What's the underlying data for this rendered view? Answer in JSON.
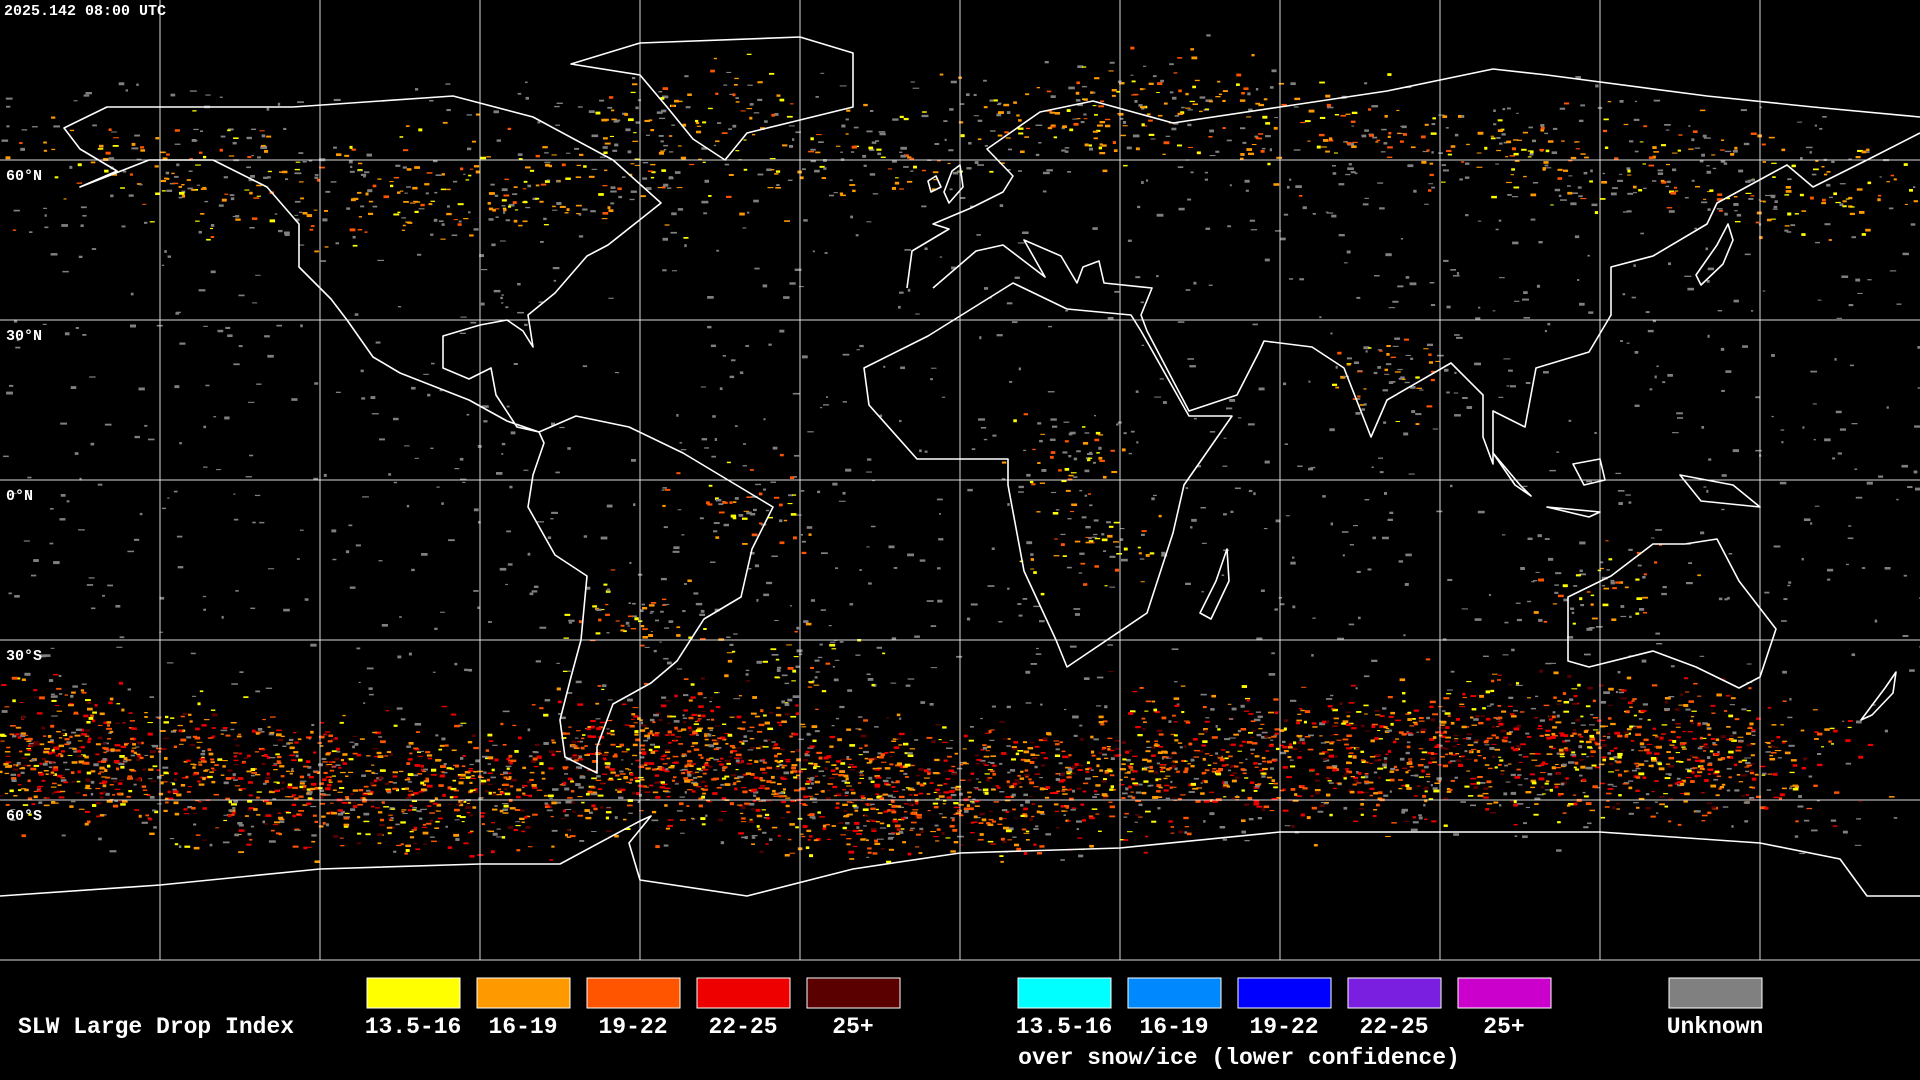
{
  "timestamp": "2025.142 08:00 UTC",
  "latitude_labels": [
    "60°N",
    "30°N",
    "0°N",
    "30°S",
    "60°S"
  ],
  "legend": {
    "title": "SLW Large Drop Index",
    "liquid": [
      {
        "label": "13.5-16",
        "color": "#ffff00"
      },
      {
        "label": "16-19",
        "color": "#ff9900"
      },
      {
        "label": "19-22",
        "color": "#ff5500"
      },
      {
        "label": "22-25",
        "color": "#ee0000"
      },
      {
        "label": "25+",
        "color": "#5a0000"
      }
    ],
    "snow_ice": [
      {
        "label": "13.5-16",
        "color": "#00ffff"
      },
      {
        "label": "16-19",
        "color": "#0088ff"
      },
      {
        "label": "19-22",
        "color": "#0000ff"
      },
      {
        "label": "22-25",
        "color": "#7a1ee0"
      },
      {
        "label": "25+",
        "color": "#cc00cc"
      }
    ],
    "snow_ice_caption": "over snow/ice (lower confidence)",
    "unknown": {
      "label": "Unknown",
      "color": "#808080"
    }
  }
}
